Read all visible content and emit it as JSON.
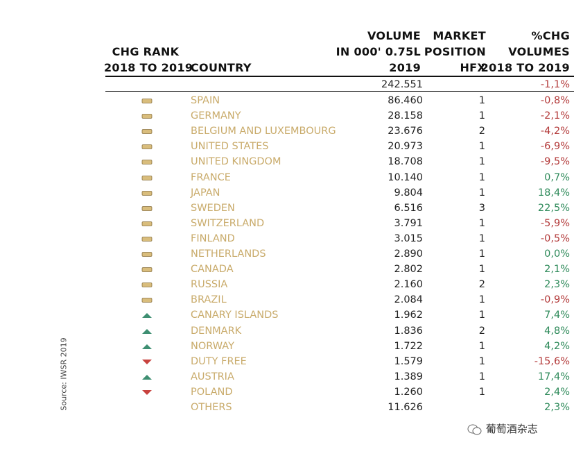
{
  "header": {
    "rank": [
      "CHG RANK",
      "2018 TO 2019"
    ],
    "country": "COUNTRY",
    "volume": [
      "VOLUME",
      "IN 000' 0.75L",
      "2019"
    ],
    "position": [
      "MARKET",
      "POSITION",
      "HFX"
    ],
    "change": [
      "%CHG",
      "VOLUMES",
      "2018 TO 2019"
    ]
  },
  "total": {
    "volume": "242.551",
    "change": "-1,1%"
  },
  "rows": [
    {
      "rank": "equal",
      "country": "SPAIN",
      "volume": "86.460",
      "position": "1",
      "change": "-0,8%"
    },
    {
      "rank": "equal",
      "country": "GERMANY",
      "volume": "28.158",
      "position": "1",
      "change": "-2,1%"
    },
    {
      "rank": "equal",
      "country": "BELGIUM AND LUXEMBOURG",
      "volume": "23.676",
      "position": "2",
      "change": "-4,2%"
    },
    {
      "rank": "equal",
      "country": "UNITED STATES",
      "volume": "20.973",
      "position": "1",
      "change": "-6,9%"
    },
    {
      "rank": "equal",
      "country": "UNITED KINGDOM",
      "volume": "18.708",
      "position": "1",
      "change": "-9,5%"
    },
    {
      "rank": "equal",
      "country": "FRANCE",
      "volume": "10.140",
      "position": "1",
      "change": "0,7%"
    },
    {
      "rank": "equal",
      "country": "JAPAN",
      "volume": "9.804",
      "position": "1",
      "change": "18,4%"
    },
    {
      "rank": "equal",
      "country": "SWEDEN",
      "volume": "6.516",
      "position": "3",
      "change": "22,5%"
    },
    {
      "rank": "equal",
      "country": "SWITZERLAND",
      "volume": "3.791",
      "position": "1",
      "change": "-5,9%"
    },
    {
      "rank": "equal",
      "country": "FINLAND",
      "volume": "3.015",
      "position": "1",
      "change": "-0,5%"
    },
    {
      "rank": "equal",
      "country": "NETHERLANDS",
      "volume": "2.890",
      "position": "1",
      "change": "0,0%"
    },
    {
      "rank": "equal",
      "country": "CANADA",
      "volume": "2.802",
      "position": "1",
      "change": "2,1%"
    },
    {
      "rank": "equal",
      "country": "RUSSIA",
      "volume": "2.160",
      "position": "2",
      "change": "2,3%"
    },
    {
      "rank": "equal",
      "country": "BRAZIL",
      "volume": "2.084",
      "position": "1",
      "change": "-0,9%"
    },
    {
      "rank": "up",
      "country": "CANARY ISLANDS",
      "volume": "1.962",
      "position": "1",
      "change": "7,4%"
    },
    {
      "rank": "up",
      "country": "DENMARK",
      "volume": "1.836",
      "position": "2",
      "change": "4,8%"
    },
    {
      "rank": "up",
      "country": "NORWAY",
      "volume": "1.722",
      "position": "1",
      "change": "4,2%"
    },
    {
      "rank": "down",
      "country": "DUTY FREE",
      "volume": "1.579",
      "position": "1",
      "change": "-15,6%"
    },
    {
      "rank": "up",
      "country": "AUSTRIA",
      "volume": "1.389",
      "position": "1",
      "change": "17,4%"
    },
    {
      "rank": "down",
      "country": "POLAND",
      "volume": "1.260",
      "position": "1",
      "change": "2,4%"
    },
    {
      "country": "OTHERS",
      "volume": "11.626",
      "change": "2,3%"
    }
  ],
  "source": "Source: IWSR 2019",
  "watermark": "葡萄酒杂志"
}
